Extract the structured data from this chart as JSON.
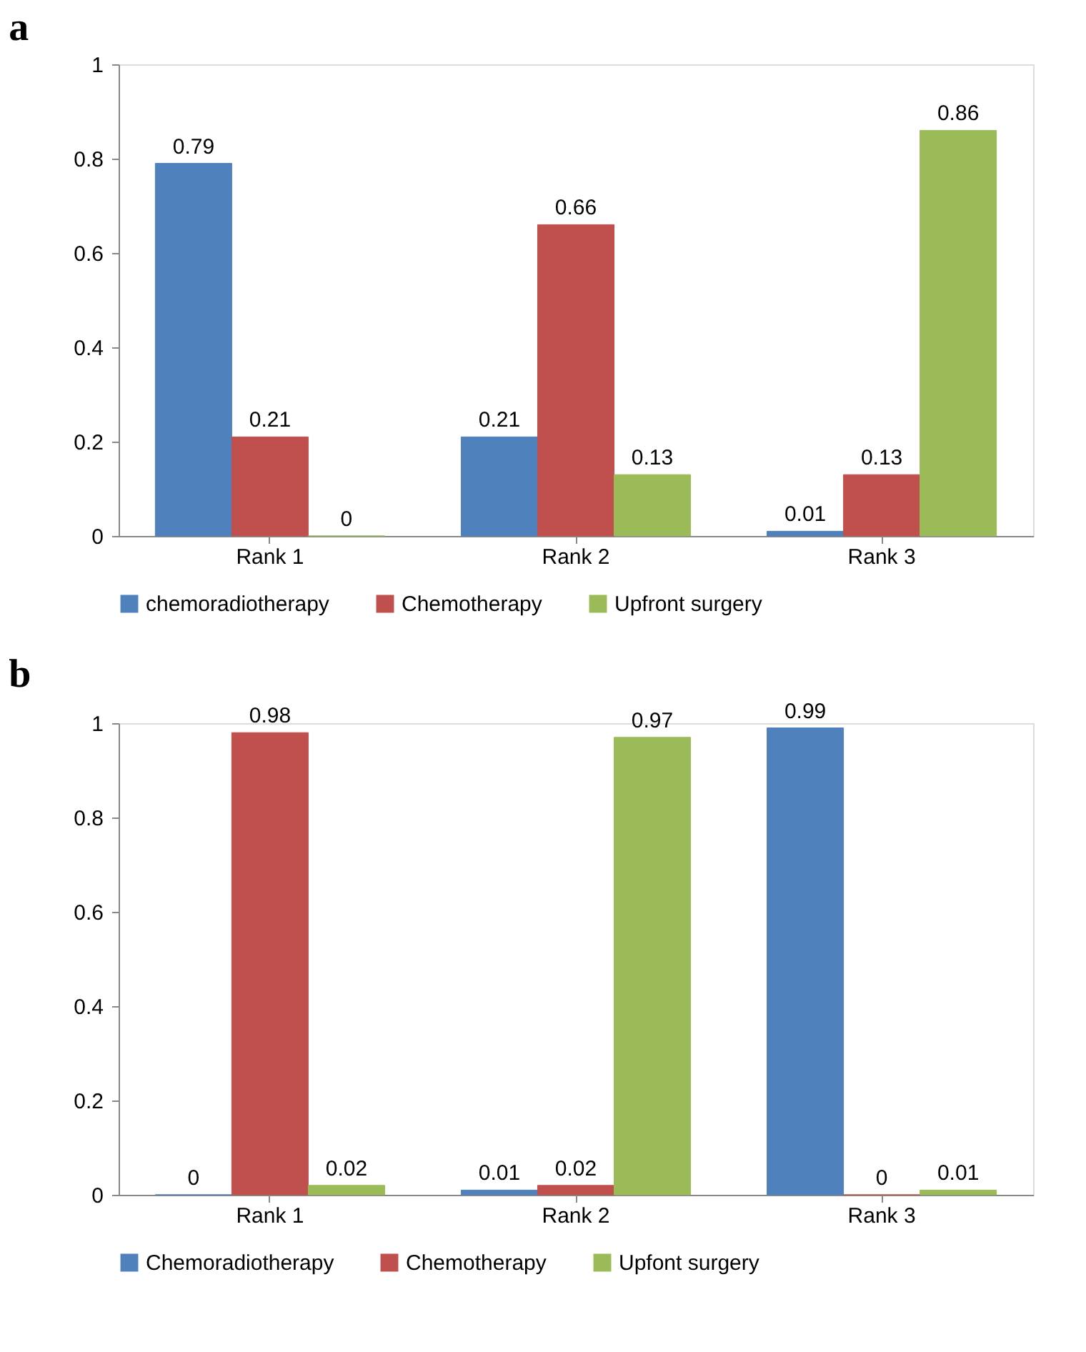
{
  "chart_data": [
    {
      "type": "bar",
      "title": "a",
      "categories": [
        "Rank 1",
        "Rank 2",
        "Rank 3"
      ],
      "series": [
        {
          "name": "chemoradiotherapy",
          "color": "#4f81bd",
          "values": [
            0.79,
            0.21,
            0.01
          ]
        },
        {
          "name": "Chemotherapy",
          "color": "#c0504d",
          "values": [
            0.21,
            0.66,
            0.13
          ]
        },
        {
          "name": "Upfront surgery",
          "color": "#9bbb59",
          "values": [
            0,
            0.13,
            0.86
          ]
        }
      ],
      "ylim": [
        0,
        1
      ],
      "yticks": [
        0,
        0.2,
        0.4,
        0.6,
        0.8,
        1
      ],
      "grid": false,
      "legend": "bottom",
      "data_labels": true
    },
    {
      "type": "bar",
      "title": "b",
      "categories": [
        "Rank 1",
        "Rank 2",
        "Rank 3"
      ],
      "series": [
        {
          "name": "Chemoradiotherapy",
          "color": "#4f81bd",
          "values": [
            0,
            0.01,
            0.99
          ]
        },
        {
          "name": "Chemotherapy",
          "color": "#c0504d",
          "values": [
            0.98,
            0.02,
            0
          ]
        },
        {
          "name": "Upfont surgery",
          "color": "#9bbb59",
          "values": [
            0.02,
            0.97,
            0.01
          ]
        }
      ],
      "ylim": [
        0,
        1
      ],
      "yticks": [
        0,
        0.2,
        0.4,
        0.6,
        0.8,
        1
      ],
      "grid": false,
      "legend": "bottom",
      "data_labels": true
    }
  ]
}
